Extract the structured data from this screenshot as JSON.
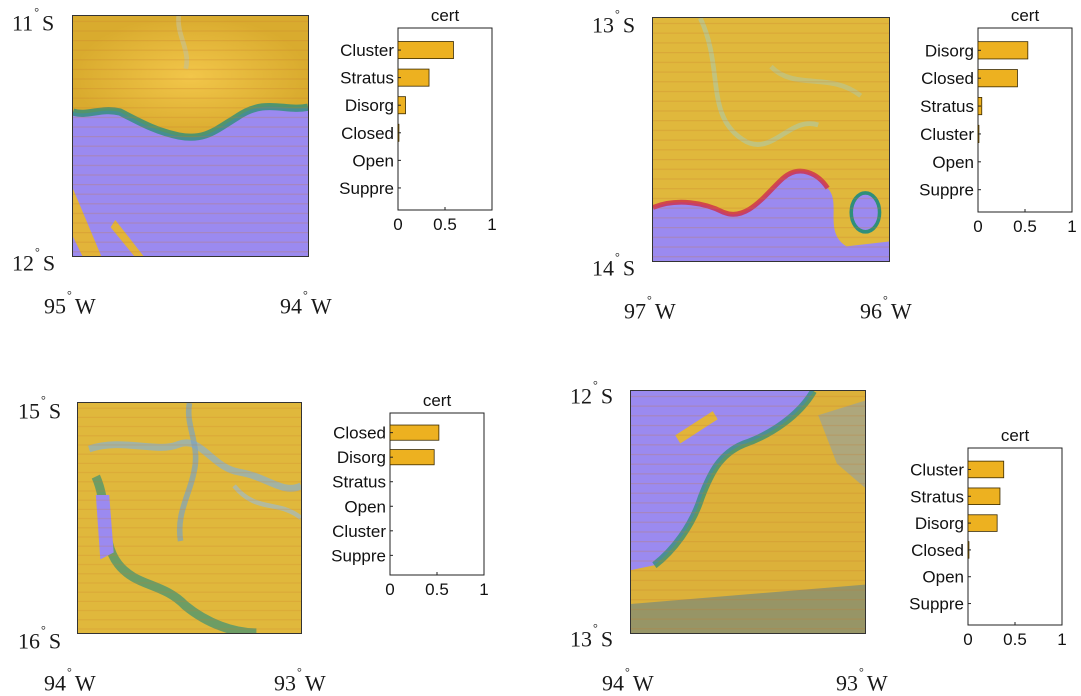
{
  "deg": "°",
  "panels": [
    {
      "lat_top": "11",
      "lat_bottom": "12",
      "lat_hemi": "S",
      "lon_left": "95",
      "lon_right": "94",
      "lon_hemi": "W"
    },
    {
      "lat_top": "13",
      "lat_bottom": "14",
      "lat_hemi": "S",
      "lon_left": "97",
      "lon_right": "96",
      "lon_hemi": "W"
    },
    {
      "lat_top": "15",
      "lat_bottom": "16",
      "lat_hemi": "S",
      "lon_left": "94",
      "lon_right": "93",
      "lon_hemi": "W"
    },
    {
      "lat_top": "12",
      "lat_bottom": "13",
      "lat_hemi": "S",
      "lon_left": "94",
      "lon_right": "93",
      "lon_hemi": "W"
    }
  ],
  "colors": {
    "bar": "#EDB120",
    "bar_edge": "#3a2a00",
    "cloud": "#e8b83a",
    "clear": "#9a88f0",
    "edge": "#2f8f7a"
  },
  "chart_data": [
    {
      "type": "bar",
      "orientation": "horizontal",
      "title": "cert",
      "categories": [
        "Cluster",
        "Stratus",
        "Disorg",
        "Closed",
        "Open",
        "Suppre"
      ],
      "values": [
        0.59,
        0.33,
        0.08,
        0.01,
        0.0,
        0.0
      ],
      "xlim": [
        0,
        1
      ],
      "xticks": [
        "0",
        "0.5",
        "1"
      ],
      "grid": false
    },
    {
      "type": "bar",
      "orientation": "horizontal",
      "title": "cert",
      "categories": [
        "Disorg",
        "Closed",
        "Stratus",
        "Cluster",
        "Open",
        "Suppre"
      ],
      "values": [
        0.53,
        0.42,
        0.04,
        0.01,
        0.0,
        0.0
      ],
      "xlim": [
        0,
        1
      ],
      "xticks": [
        "0",
        "0.5",
        "1"
      ],
      "grid": false
    },
    {
      "type": "bar",
      "orientation": "horizontal",
      "title": "cert",
      "categories": [
        "Closed",
        "Disorg",
        "Stratus",
        "Open",
        "Cluster",
        "Suppre"
      ],
      "values": [
        0.52,
        0.47,
        0.0,
        0.0,
        0.0,
        0.0
      ],
      "xlim": [
        0,
        1
      ],
      "xticks": [
        "0",
        "0.5",
        "1"
      ],
      "grid": false
    },
    {
      "type": "bar",
      "orientation": "horizontal",
      "title": "cert",
      "categories": [
        "Cluster",
        "Stratus",
        "Disorg",
        "Closed",
        "Open",
        "Suppre"
      ],
      "values": [
        0.38,
        0.34,
        0.31,
        0.01,
        0.0,
        0.0
      ],
      "xlim": [
        0,
        1
      ],
      "xticks": [
        "0",
        "0.5",
        "1"
      ],
      "grid": false
    }
  ]
}
